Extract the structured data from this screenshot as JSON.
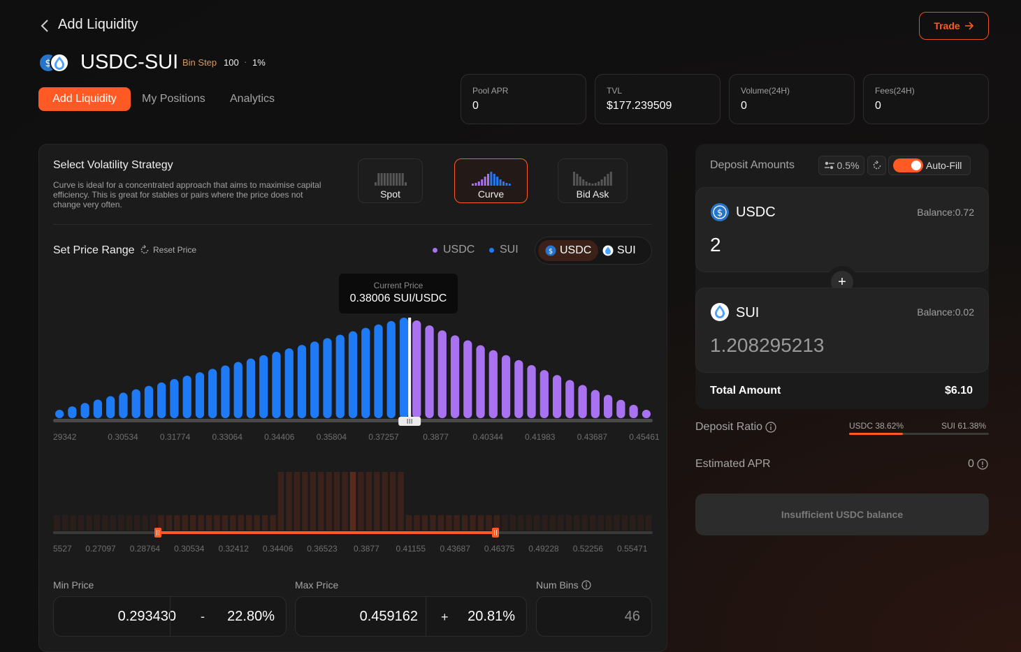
{
  "header": {
    "title": "Add Liquidity",
    "trade_label": "Trade"
  },
  "pool": {
    "name": "USDC-SUI",
    "bin_step_label": "Bin Step",
    "bin_step_value": "100",
    "separator": "·",
    "fee": "1%"
  },
  "tabs": [
    {
      "label": "Add Liquidity"
    },
    {
      "label": "My Positions"
    },
    {
      "label": "Analytics"
    }
  ],
  "stats": [
    {
      "label": "Pool APR",
      "value": "0"
    },
    {
      "label": "TVL",
      "value": "$177.239509"
    },
    {
      "label": "Volume(24H)",
      "value": "0"
    },
    {
      "label": "Fees(24H)",
      "value": "0"
    }
  ],
  "strategy": {
    "title": "Select Volatility Strategy",
    "description": "Curve is ideal for a concentrated approach that aims to maximise capital efficiency. This is great for stables or pairs where the price does not change very often.",
    "options": [
      {
        "label": "Spot"
      },
      {
        "label": "Curve"
      },
      {
        "label": "Bid Ask"
      }
    ],
    "selected": "Curve"
  },
  "price_range": {
    "title": "Set Price Range",
    "reset_label": "Reset Price",
    "legend": [
      {
        "label": "USDC",
        "color": "#a872f0"
      },
      {
        "label": "SUI",
        "color": "#1f7bf5"
      }
    ],
    "toggle": [
      {
        "label": "USDC"
      },
      {
        "label": "SUI"
      }
    ],
    "current_price_label": "Current Price",
    "current_price": "0.38006 SUI/USDC",
    "ticks": [
      "29342",
      "0.30534",
      "0.31774",
      "0.33064",
      "0.34406",
      "0.35804",
      "0.37257",
      "0.3877",
      "0.40344",
      "0.41983",
      "0.43687",
      "0.45461"
    ],
    "overview_ticks": [
      "5527",
      "0.27097",
      "0.28764",
      "0.30534",
      "0.32412",
      "0.34406",
      "0.36523",
      "0.3877",
      "0.41155",
      "0.43687",
      "0.46375",
      "0.49228",
      "0.52256",
      "0.55471"
    ],
    "min_price_label": "Min Price",
    "min_price": "0.293430",
    "min_sign": "-",
    "min_pct": "22.80%",
    "max_price_label": "Max Price",
    "max_price": "0.459162",
    "max_sign": "+",
    "max_pct": "20.81%",
    "num_bins_label": "Num Bins",
    "num_bins": "46"
  },
  "deposit": {
    "title": "Deposit Amounts",
    "slippage": "0.5%",
    "autofill_label": "Auto-Fill",
    "token_a": {
      "name": "USDC",
      "balance": "Balance:0.72",
      "amount": "2"
    },
    "token_b": {
      "name": "SUI",
      "balance": "Balance:0.02",
      "amount": "1.208295213"
    },
    "plus": "+",
    "total_label": "Total Amount",
    "total_value": "$6.10",
    "ratio_label": "Deposit Ratio",
    "ratio_usdc": "USDC 38.62%",
    "ratio_sui": "SUI 61.38%",
    "ratio_usdc_fraction": 0.3862,
    "apr_label": "Estimated APR",
    "apr_value": "0",
    "submit_label": "Insufficient USDC balance"
  },
  "chart_data": {
    "type": "bar",
    "bins_left": 28,
    "bins_right": 19,
    "colors": {
      "sui": "#1f7bf5",
      "usdc": "#a872f0",
      "accent": "#ff5a24"
    }
  }
}
